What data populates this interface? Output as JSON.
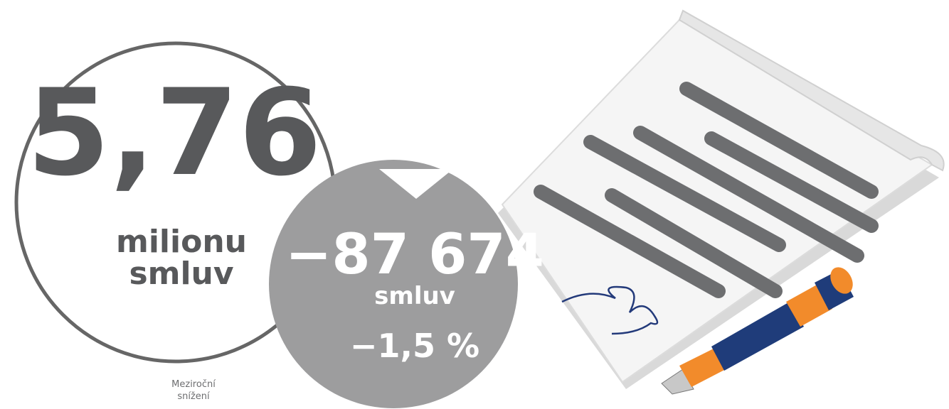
{
  "main": {
    "value": "5,76",
    "unit_lines": [
      "milionu",
      "smluv"
    ]
  },
  "change": {
    "value": "−87 674",
    "unit": "smluv",
    "percent": "−1,5 %"
  },
  "caption": [
    "Meziroční",
    "snížení"
  ]
}
